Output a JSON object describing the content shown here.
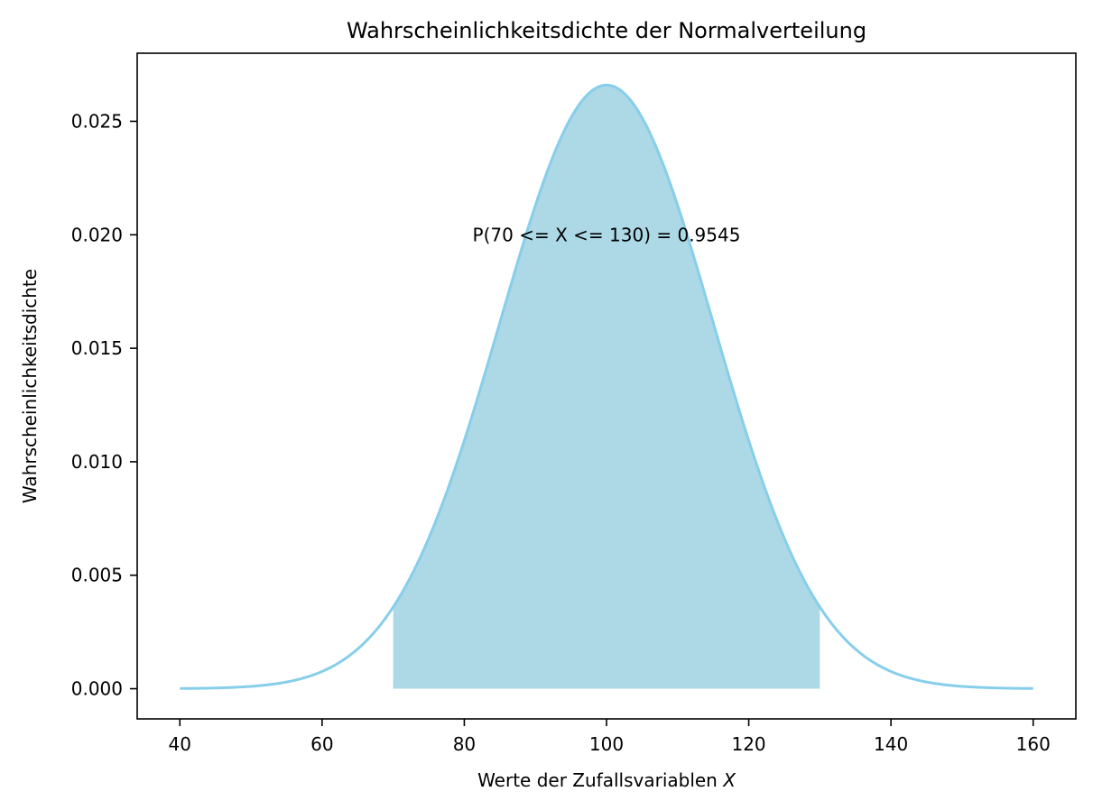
{
  "chart_data": {
    "type": "area",
    "title": "Wahrscheinlichkeitsdichte der Normalverteilung",
    "xlabel_prefix": "Werte der Zufallsvariablen ",
    "xlabel_var": "X",
    "ylabel": "Wahrscheinlichkeitsdichte",
    "annotation": "P(70 <= X <= 130) = 0.9545",
    "distribution": {
      "mean": 100,
      "std": 15
    },
    "x_range": [
      40,
      160
    ],
    "fill_range": [
      70,
      130
    ],
    "xlim": [
      34,
      166
    ],
    "ylim": [
      -0.00133,
      0.028
    ],
    "x_ticks": [
      40,
      60,
      80,
      100,
      120,
      140,
      160
    ],
    "x_tick_labels": [
      "40",
      "60",
      "80",
      "100",
      "120",
      "140",
      "160"
    ],
    "y_ticks": [
      0,
      0.005,
      0.01,
      0.015,
      0.02,
      0.025
    ],
    "y_tick_labels": [
      "0.000",
      "0.005",
      "0.010",
      "0.015",
      "0.020",
      "0.025"
    ],
    "annotation_position": {
      "x": 100,
      "y": 0.02
    },
    "grid": false,
    "colors": {
      "line": "#87ceeb",
      "fill": "#add8e6"
    }
  }
}
